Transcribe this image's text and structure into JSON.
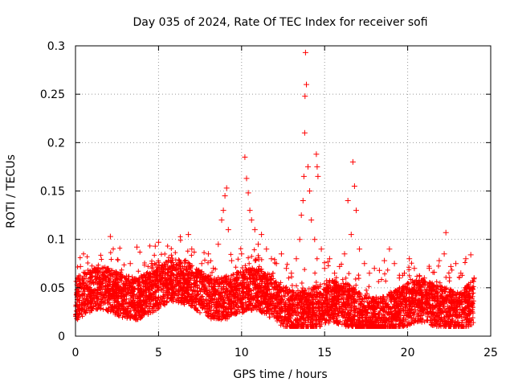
{
  "chart_data": {
    "type": "scatter",
    "title": "Day 035 of 2024, Rate Of TEC Index for receiver sofi",
    "xlabel": "GPS time / hours",
    "ylabel": "ROTI / TECUs",
    "xlim": [
      0,
      25
    ],
    "ylim": [
      0,
      0.3
    ],
    "xticks": [
      0,
      5,
      10,
      15,
      20,
      25
    ],
    "yticks": [
      0,
      0.05,
      0.1,
      0.15,
      0.2,
      0.25,
      0.3
    ],
    "xtick_labels": [
      "0",
      "5",
      "10",
      "15",
      "20",
      "25"
    ],
    "ytick_labels": [
      "0",
      "0.05",
      "0.1",
      "0.15",
      "0.2",
      "0.25",
      "0.3"
    ],
    "grid": true,
    "marker": "+",
    "color": "#ff0000",
    "series": [
      {
        "name": "ROTI",
        "points": [
          [
            0.1,
            0.035
          ],
          [
            0.3,
            0.072
          ],
          [
            0.5,
            0.055
          ],
          [
            0.8,
            0.048
          ],
          [
            1.0,
            0.062
          ],
          [
            1.3,
            0.041
          ],
          [
            1.6,
            0.07
          ],
          [
            1.9,
            0.052
          ],
          [
            2.1,
            0.103
          ],
          [
            2.4,
            0.058
          ],
          [
            2.7,
            0.066
          ],
          [
            3.0,
            0.05
          ],
          [
            3.3,
            0.075
          ],
          [
            3.7,
            0.092
          ],
          [
            3.9,
            0.045
          ],
          [
            4.2,
            0.06
          ],
          [
            4.6,
            0.07
          ],
          [
            4.8,
            0.093
          ],
          [
            5.0,
            0.097
          ],
          [
            5.3,
            0.055
          ],
          [
            5.6,
            0.045
          ],
          [
            5.9,
            0.038
          ],
          [
            6.2,
            0.052
          ],
          [
            6.5,
            0.065
          ],
          [
            6.8,
            0.105
          ],
          [
            7.0,
            0.09
          ],
          [
            7.3,
            0.06
          ],
          [
            7.6,
            0.075
          ],
          [
            8.0,
            0.085
          ],
          [
            8.3,
            0.07
          ],
          [
            8.6,
            0.095
          ],
          [
            8.8,
            0.12
          ],
          [
            8.9,
            0.13
          ],
          [
            9.0,
            0.145
          ],
          [
            9.1,
            0.153
          ],
          [
            9.2,
            0.11
          ],
          [
            9.4,
            0.078
          ],
          [
            9.7,
            0.065
          ],
          [
            10.0,
            0.085
          ],
          [
            10.2,
            0.185
          ],
          [
            10.3,
            0.163
          ],
          [
            10.4,
            0.148
          ],
          [
            10.5,
            0.13
          ],
          [
            10.6,
            0.12
          ],
          [
            10.8,
            0.11
          ],
          [
            11.0,
            0.095
          ],
          [
            11.2,
            0.105
          ],
          [
            11.5,
            0.09
          ],
          [
            11.8,
            0.08
          ],
          [
            12.1,
            0.075
          ],
          [
            12.4,
            0.085
          ],
          [
            12.7,
            0.07
          ],
          [
            13.0,
            0.065
          ],
          [
            13.3,
            0.08
          ],
          [
            13.5,
            0.1
          ],
          [
            13.6,
            0.125
          ],
          [
            13.7,
            0.14
          ],
          [
            13.75,
            0.165
          ],
          [
            13.8,
            0.21
          ],
          [
            13.82,
            0.248
          ],
          [
            13.85,
            0.293
          ],
          [
            13.9,
            0.26
          ],
          [
            14.0,
            0.175
          ],
          [
            14.1,
            0.15
          ],
          [
            14.2,
            0.12
          ],
          [
            14.4,
            0.1
          ],
          [
            14.5,
            0.188
          ],
          [
            14.55,
            0.175
          ],
          [
            14.6,
            0.165
          ],
          [
            14.8,
            0.09
          ],
          [
            15.0,
            0.07
          ],
          [
            15.3,
            0.08
          ],
          [
            15.6,
            0.065
          ],
          [
            15.9,
            0.072
          ],
          [
            16.2,
            0.085
          ],
          [
            16.4,
            0.14
          ],
          [
            16.6,
            0.105
          ],
          [
            16.7,
            0.18
          ],
          [
            16.8,
            0.155
          ],
          [
            16.9,
            0.13
          ],
          [
            17.1,
            0.09
          ],
          [
            17.4,
            0.075
          ],
          [
            17.7,
            0.065
          ],
          [
            18.0,
            0.07
          ],
          [
            18.3,
            0.068
          ],
          [
            18.6,
            0.078
          ],
          [
            18.9,
            0.09
          ],
          [
            19.2,
            0.075
          ],
          [
            19.5,
            0.06
          ],
          [
            19.8,
            0.065
          ],
          [
            20.1,
            0.08
          ],
          [
            20.4,
            0.07
          ],
          [
            20.7,
            0.062
          ],
          [
            21.0,
            0.06
          ],
          [
            21.3,
            0.07
          ],
          [
            21.6,
            0.066
          ],
          [
            21.9,
            0.078
          ],
          [
            22.2,
            0.085
          ],
          [
            22.3,
            0.107
          ],
          [
            22.6,
            0.072
          ],
          [
            22.9,
            0.075
          ],
          [
            23.2,
            0.065
          ],
          [
            23.5,
            0.08
          ],
          [
            23.8,
            0.084
          ],
          [
            24.0,
            0.06
          ]
        ]
      }
    ]
  }
}
